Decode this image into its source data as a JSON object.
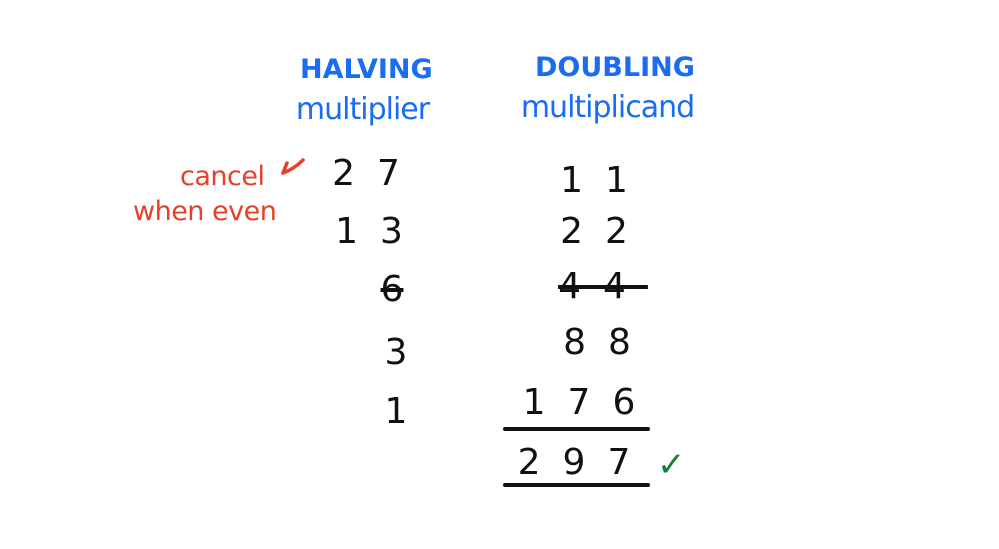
{
  "headings": {
    "halving_title": "HALVING",
    "halving_subtitle": "multiplier",
    "doubling_title": "DOUBLING",
    "doubling_subtitle": "multiplicand"
  },
  "annotation": {
    "line1": "cancel",
    "line2": "when even",
    "color": "#e6402b"
  },
  "halving_column": [
    {
      "value": "27",
      "struck": false
    },
    {
      "value": "13",
      "struck": false
    },
    {
      "value": "6",
      "struck": true
    },
    {
      "value": "3",
      "struck": false
    },
    {
      "value": "1",
      "struck": false
    }
  ],
  "doubling_column": [
    {
      "value": "11",
      "struck": false
    },
    {
      "value": "22",
      "struck": false
    },
    {
      "value": "44",
      "struck": true
    },
    {
      "value": "88",
      "struck": false
    },
    {
      "value": "176",
      "struck": false
    }
  ],
  "total": "297",
  "check_mark": "check-icon",
  "colors": {
    "heading": "#1a6cf0",
    "digits": "#111111",
    "check": "#19803c"
  }
}
